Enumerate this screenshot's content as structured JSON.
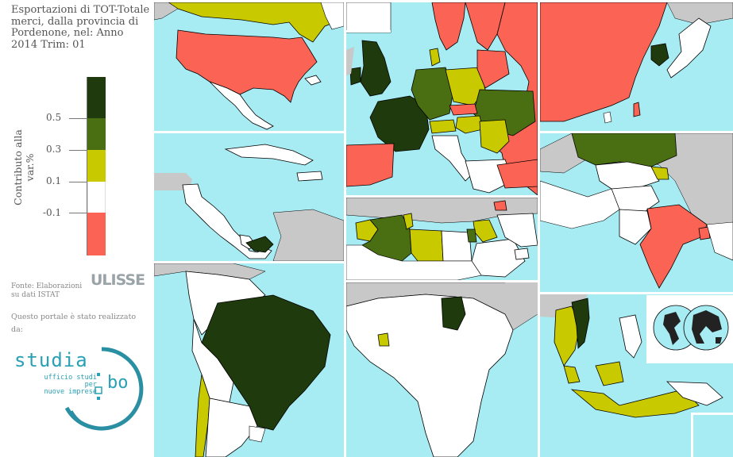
{
  "title": "Esportazioni di TOT-Totale merci, dalla provincia di Pordenone, nel: Anno 2014 Trim: 01",
  "legend": {
    "axis_label": "Contributo alla var.%",
    "ticks": [
      "0.5",
      "0.3",
      "0.1",
      "-0.1"
    ],
    "colors": {
      "very_high": "#1f3a0c",
      "high": "#4a6f12",
      "medium": "#c9c900",
      "neutral": "#ffffff",
      "negative": "#fb6455",
      "no_data": "#c8c8c8",
      "sea": "#a7ebf3"
    }
  },
  "source": {
    "line1": "Fonte: Elaborazioni",
    "line2": "su dati ISTAT",
    "logo": "ULISSE"
  },
  "credits": {
    "realized_by": "Questo portale è stato realizzato da:",
    "logo_main": "studia",
    "logo_suffix": "bo",
    "tagline_1": "ufficio studi per",
    "tagline_2": "nuove imprese"
  },
  "regions": [
    {
      "name": "North America",
      "countries": {
        "USA": "negative",
        "Canada": "medium",
        "Mexico": "neutral"
      }
    },
    {
      "name": "Europe",
      "countries": {
        "United Kingdom": "very_high",
        "France": "very_high",
        "Germany": "high",
        "Spain": "negative",
        "Poland": "medium",
        "Ukraine": "high",
        "Romania": "medium",
        "Sweden": "negative",
        "Finland": "negative",
        "Russia": "negative",
        "Czech Republic": "negative",
        "Turkey": "negative",
        "Belarus": "medium",
        "Denmark": "medium",
        "Hungary": "medium",
        "Austria": "medium",
        "Ireland": "very_high"
      }
    },
    {
      "name": "East Asia",
      "countries": {
        "China": "negative",
        "South Korea": "very_high",
        "Japan": "neutral",
        "Taiwan": "negative"
      }
    },
    {
      "name": "Central America",
      "countries": {
        "Panama": "very_high",
        "Costa Rica": "neutral",
        "Cuba": "neutral"
      }
    },
    {
      "name": "North Africa / Middle East",
      "countries": {
        "Algeria": "high",
        "Morocco": "medium",
        "Libya": "medium",
        "Tunisia": "medium",
        "Egypt": "neutral",
        "Saudi Arabia": "neutral",
        "Iran": "neutral",
        "Israel": "medium",
        "Lebanon": "medium",
        "Jordan": "high",
        "Syria": "medium",
        "Azerbaijan": "negative",
        "United Arab Emirates": "neutral"
      }
    },
    {
      "name": "Central / South Asia",
      "countries": {
        "Kazakhstan": "high",
        "India": "negative",
        "Pakistan": "neutral",
        "Afghanistan": "neutral",
        "Kyrgyzstan": "medium",
        "Bangladesh": "negative"
      }
    },
    {
      "name": "South America",
      "countries": {
        "Brazil": "very_high",
        "Chile": "medium",
        "Argentina": "neutral"
      }
    },
    {
      "name": "Africa",
      "countries": {
        "Chad": "very_high",
        "Ivory Coast": "medium"
      }
    },
    {
      "name": "South-East Asia",
      "countries": {
        "Vietnam": "very_high",
        "Thailand": "medium",
        "Indonesia": "medium",
        "Malaysia": "medium",
        "Philippines": "neutral"
      }
    }
  ]
}
